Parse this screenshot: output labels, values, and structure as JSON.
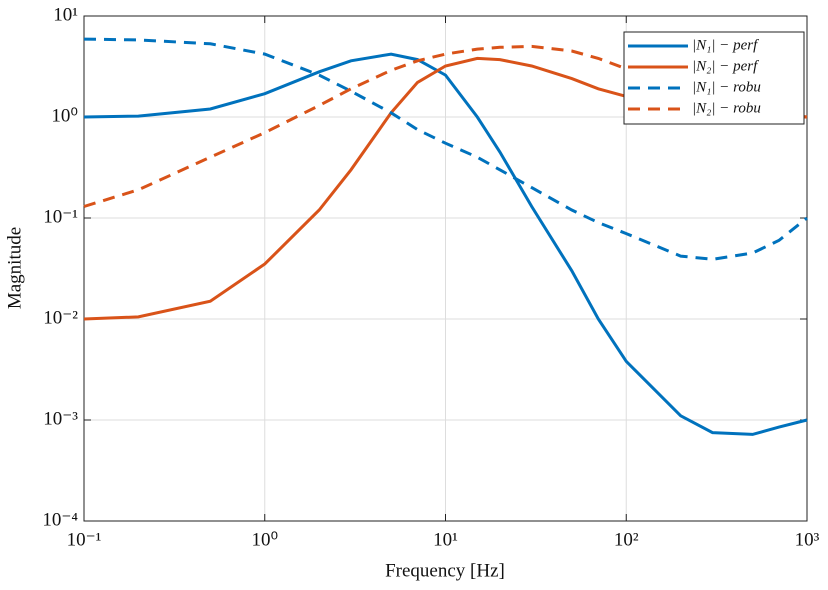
{
  "chart_data": {
    "type": "line",
    "xlabel": "Frequency [Hz]",
    "ylabel": "Magnitude",
    "xscale": "log",
    "yscale": "log",
    "grid": true,
    "legend": "northeast",
    "x": [
      0.1,
      0.2,
      0.5,
      1,
      2,
      3,
      5,
      7,
      10,
      15,
      20,
      30,
      50,
      70,
      100,
      200,
      300,
      500,
      700,
      1000
    ],
    "series": [
      {
        "name": "|N₁| − perf",
        "color": "#0072bd",
        "line_style": "solid",
        "values": [
          1,
          1.02,
          1.2,
          1.7,
          2.8,
          3.6,
          4.2,
          3.7,
          2.6,
          1.0,
          0.45,
          0.13,
          0.03,
          0.01,
          0.0038,
          0.0011,
          0.00075,
          0.00072,
          0.00085,
          0.001
        ]
      },
      {
        "name": "|N₂| − perf",
        "color": "#d95319",
        "line_style": "solid",
        "values": [
          0.01,
          0.0105,
          0.015,
          0.035,
          0.12,
          0.3,
          1.1,
          2.2,
          3.2,
          3.8,
          3.7,
          3.2,
          2.4,
          1.9,
          1.6,
          1.2,
          1.1,
          1.03,
          1.01,
          1.0
        ]
      },
      {
        "name": "|N₁| − robu",
        "color": "#0072bd",
        "line_style": "dashed",
        "values": [
          5.9,
          5.8,
          5.3,
          4.2,
          2.6,
          1.8,
          1.1,
          0.75,
          0.55,
          0.4,
          0.3,
          0.2,
          0.12,
          0.09,
          0.07,
          0.042,
          0.039,
          0.045,
          0.06,
          0.1
        ]
      },
      {
        "name": "|N₂| − robu",
        "color": "#d95319",
        "line_style": "dashed",
        "values": [
          0.13,
          0.19,
          0.4,
          0.7,
          1.3,
          1.9,
          2.9,
          3.6,
          4.2,
          4.7,
          4.9,
          5.0,
          4.5,
          3.8,
          3.0,
          1.9,
          1.5,
          1.2,
          1.1,
          1.0
        ]
      }
    ],
    "xlim": [
      0.1,
      1000
    ],
    "xticks": [
      {
        "value": 0.1,
        "label": "10⁻¹"
      },
      {
        "value": 1,
        "label": "10⁰"
      },
      {
        "value": 10,
        "label": "10¹"
      },
      {
        "value": 100,
        "label": "10²"
      },
      {
        "value": 1000,
        "label": "10³"
      }
    ],
    "ylim": [
      0.0001,
      10
    ],
    "yticks": [
      {
        "value": 0.0001,
        "label": "10⁻⁴"
      },
      {
        "value": 0.001,
        "label": "10⁻³"
      },
      {
        "value": 0.01,
        "label": "10⁻²"
      },
      {
        "value": 0.1,
        "label": "10⁻¹"
      },
      {
        "value": 1,
        "label": "10⁰"
      },
      {
        "value": 10,
        "label": "10¹"
      }
    ]
  }
}
